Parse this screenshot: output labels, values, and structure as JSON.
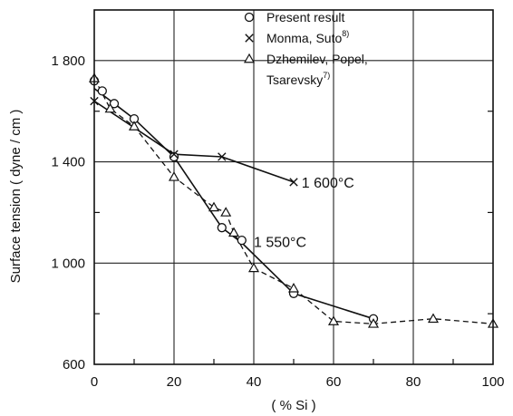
{
  "chart_data": {
    "type": "scatter",
    "title": "",
    "xlabel": "( % Si )",
    "ylabel": "Surface tension ( dyne / cm )",
    "xlim": [
      0,
      100
    ],
    "ylim": [
      600,
      2000
    ],
    "xticks": [
      0,
      20,
      40,
      60,
      80,
      100
    ],
    "yticks": [
      600,
      1000,
      1400,
      1800
    ],
    "xtick_labels": [
      "0",
      "20",
      "40",
      "60",
      "80",
      "100"
    ],
    "ytick_labels": [
      "600",
      "1 000",
      "1 400",
      "1 800"
    ],
    "grid": true,
    "legend_position": "top-right",
    "series": [
      {
        "name": "Present result",
        "marker": "circle",
        "points": [
          [
            0,
            1720
          ],
          [
            2,
            1680
          ],
          [
            5,
            1630
          ],
          [
            10,
            1570
          ],
          [
            20,
            1420
          ],
          [
            32,
            1140
          ],
          [
            37,
            1090
          ],
          [
            50,
            880
          ],
          [
            70,
            780
          ]
        ]
      },
      {
        "name": "Monma, Suto",
        "marker": "cross",
        "points": [
          [
            0,
            1640
          ],
          [
            20,
            1430
          ],
          [
            32,
            1420
          ],
          [
            50,
            1320
          ]
        ]
      },
      {
        "name": "Dzhemilev, Popel, Tsarevsky",
        "marker": "triangle",
        "points": [
          [
            0,
            1730
          ],
          [
            4,
            1610
          ],
          [
            10,
            1540
          ],
          [
            20,
            1340
          ],
          [
            30,
            1220
          ],
          [
            33,
            1200
          ],
          [
            35,
            1120
          ],
          [
            40,
            980
          ],
          [
            50,
            900
          ],
          [
            60,
            770
          ],
          [
            70,
            760
          ],
          [
            85,
            780
          ],
          [
            100,
            760
          ]
        ]
      }
    ],
    "curves": [
      {
        "label": "1 600°C",
        "style": "solid",
        "x": [
          0,
          20,
          32,
          50
        ],
        "y": [
          1640,
          1430,
          1420,
          1320
        ]
      },
      {
        "label": "1 550°C",
        "style": "solid",
        "x": [
          0,
          5,
          10,
          20,
          32,
          37,
          50,
          70
        ],
        "y": [
          1690,
          1630,
          1570,
          1420,
          1140,
          1080,
          880,
          780
        ]
      },
      {
        "label": "",
        "style": "dashed",
        "x": [
          0,
          4,
          10,
          20,
          30,
          33,
          35,
          40,
          50,
          60,
          70,
          85,
          100
        ],
        "y": [
          1730,
          1610,
          1540,
          1340,
          1220,
          1200,
          1120,
          980,
          900,
          770,
          760,
          780,
          760
        ]
      }
    ],
    "legend": [
      {
        "marker": "circle",
        "text": "Present result",
        "superscript": ""
      },
      {
        "marker": "cross",
        "text": "Monma, Suto",
        "superscript": "8)"
      },
      {
        "marker": "triangle",
        "text": "Dzhemilev, Popel,",
        "superscript": ""
      },
      {
        "marker": "",
        "text": "Tsarevsky",
        "superscript": "7)"
      }
    ],
    "annotations": [
      {
        "text": "1 600°C",
        "x": 52,
        "y": 1320
      },
      {
        "text": "1 550°C",
        "x": 40,
        "y": 1085
      }
    ]
  }
}
